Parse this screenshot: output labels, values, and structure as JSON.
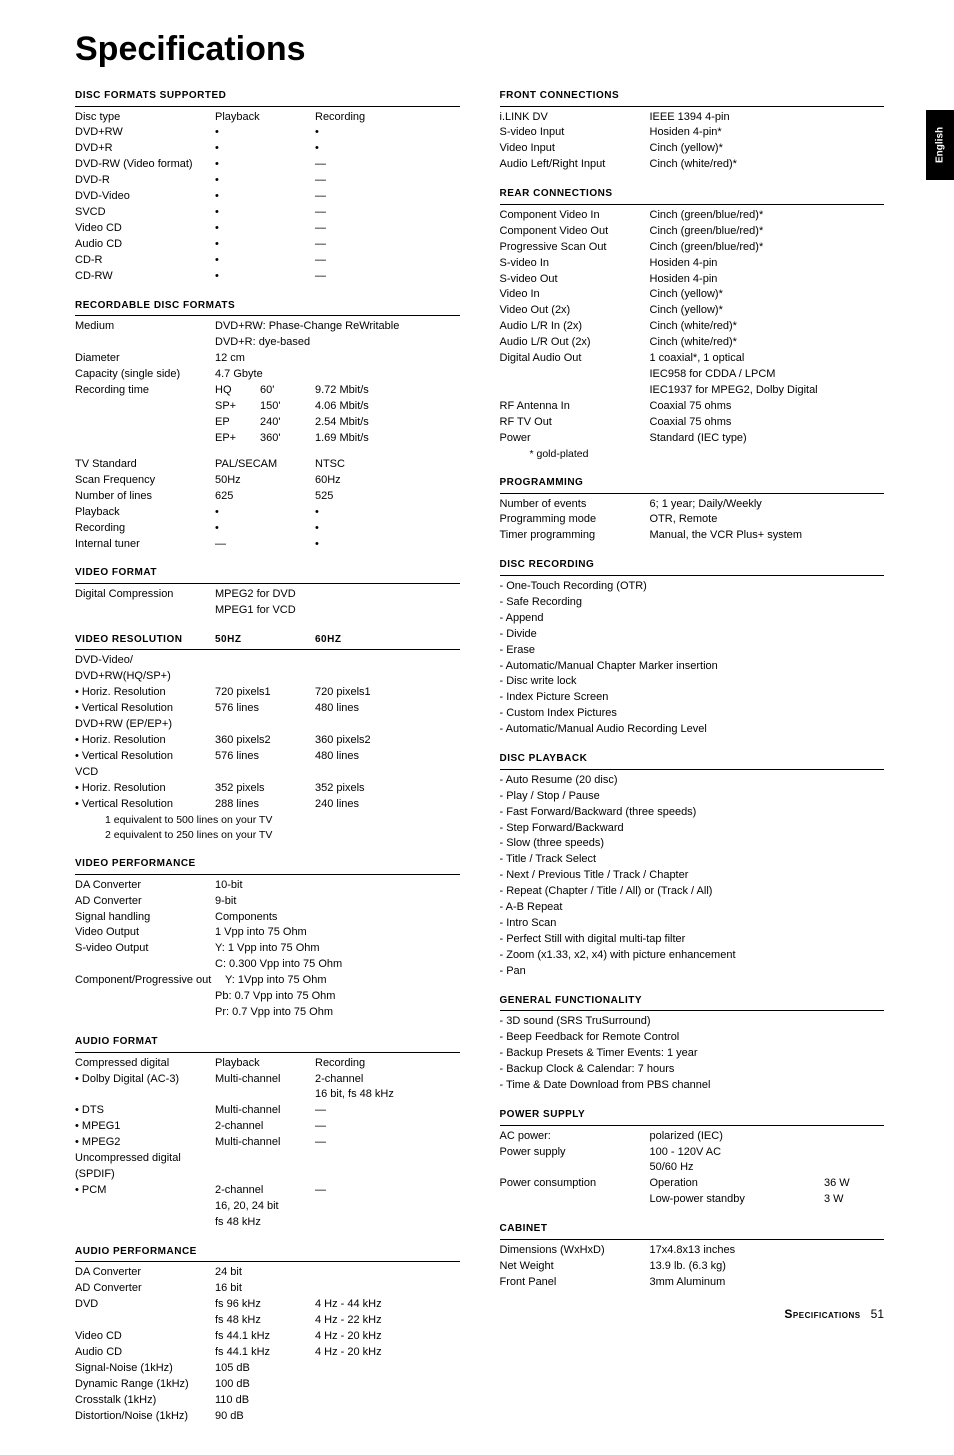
{
  "page": {
    "heading": "Specifications",
    "side_tab": "English",
    "footer_label": "Specifications",
    "footer_page": "51"
  },
  "left": {
    "disc_formats": {
      "title": "DISC FORMATS SUPPORTED",
      "header": {
        "c1": "Disc type",
        "c2": "Playback",
        "c3": "Recording"
      },
      "rows": [
        {
          "c1": "DVD+RW",
          "c2": "•",
          "c3": "•"
        },
        {
          "c1": "DVD+R",
          "c2": "•",
          "c3": "•"
        },
        {
          "c1": "DVD-RW (Video format)",
          "c2": "•",
          "c3": "—"
        },
        {
          "c1": "DVD-R",
          "c2": "•",
          "c3": "—"
        },
        {
          "c1": "DVD-Video",
          "c2": "•",
          "c3": "—"
        },
        {
          "c1": "SVCD",
          "c2": "•",
          "c3": "—"
        },
        {
          "c1": "Video CD",
          "c2": "•",
          "c3": "—"
        },
        {
          "c1": "Audio CD",
          "c2": "•",
          "c3": "—"
        },
        {
          "c1": "CD-R",
          "c2": "•",
          "c3": "—"
        },
        {
          "c1": "CD-RW",
          "c2": "•",
          "c3": "—"
        }
      ]
    },
    "rec_disc": {
      "title": "RECORDABLE DISC FORMATS",
      "rows": [
        {
          "c1": "Medium",
          "c2": "DVD+RW: Phase-Change ReWritable"
        },
        {
          "c1": "",
          "c2": "DVD+R: dye-based"
        },
        {
          "c1": "Diameter",
          "c2": "12 cm"
        },
        {
          "c1": "Capacity (single side)",
          "c2": "4.7 Gbyte"
        },
        {
          "c1": "Recording time",
          "c2": "HQ",
          "c2b": "60'",
          "c3": "9.72 Mbit/s"
        },
        {
          "c1": "",
          "c2": "SP+",
          "c2b": "150'",
          "c3": "4.06 Mbit/s"
        },
        {
          "c1": "",
          "c2": "EP",
          "c2b": "240'",
          "c3": "2.54 Mbit/s"
        },
        {
          "c1": "",
          "c2": "EP+",
          "c2b": "360'",
          "c3": "1.69 Mbit/s"
        }
      ],
      "rows2": [
        {
          "c1": "TV Standard",
          "c2": "PAL/SECAM",
          "c3": "NTSC"
        },
        {
          "c1": "Scan Frequency",
          "c2": "50Hz",
          "c3": "60Hz"
        },
        {
          "c1": "Number of lines",
          "c2": "625",
          "c3": "525"
        },
        {
          "c1": "Playback",
          "c2": "•",
          "c3": "•"
        },
        {
          "c1": "Recording",
          "c2": "•",
          "c3": "•"
        },
        {
          "c1": "Internal tuner",
          "c2": "—",
          "c3": "•"
        }
      ]
    },
    "vfmt": {
      "title": "VIDEO FORMAT",
      "rows": [
        {
          "c1": "Digital Compression",
          "c2": "MPEG2 for DVD"
        },
        {
          "c1": "",
          "c2": "MPEG1 for VCD"
        }
      ]
    },
    "vres": {
      "title_c1": "VIDEO RESOLUTION",
      "title_c2": "50Hz",
      "title_c3": "60Hz",
      "rows": [
        {
          "c1": "DVD-Video/"
        },
        {
          "c1": "DVD+RW(HQ/SP+)"
        },
        {
          "c1": "• Horiz. Resolution",
          "c2": "720 pixels1",
          "c3": "720 pixels1"
        },
        {
          "c1": "• Vertical Resolution",
          "c2": "576 lines",
          "c3": "480 lines"
        },
        {
          "c1": "DVD+RW (EP/EP+)"
        },
        {
          "c1": "• Horiz. Resolution",
          "c2": "360 pixels2",
          "c3": "360 pixels2"
        },
        {
          "c1": "• Vertical Resolution",
          "c2": "576 lines",
          "c3": "480 lines"
        },
        {
          "c1": "VCD"
        },
        {
          "c1": "• Horiz. Resolution",
          "c2": "352 pixels",
          "c3": "352 pixels"
        },
        {
          "c1": "• Vertical Resolution",
          "c2": "288 lines",
          "c3": "240 lines"
        }
      ],
      "note1": "1 equivalent to 500 lines on your TV",
      "note2": "2 equivalent to 250 lines on your TV"
    },
    "vperf": {
      "title": "VIDEO PERFORMANCE",
      "rows": [
        {
          "c1": "DA Converter",
          "c2": "10-bit"
        },
        {
          "c1": "AD Converter",
          "c2": "9-bit"
        },
        {
          "c1": "Signal handling",
          "c2": "Components"
        },
        {
          "c1": "Video Output",
          "c2": "1 Vpp into 75 Ohm"
        },
        {
          "c1": "S-video Output",
          "c2": "Y: 1 Vpp into 75 Ohm"
        },
        {
          "c1": "",
          "c2": "C: 0.300 Vpp into 75 Ohm"
        },
        {
          "c1": "Component/Progressive out",
          "c2": "Y: 1Vpp into 75 Ohm",
          "wide": true
        },
        {
          "c1": "",
          "c2": "Pb: 0.7 Vpp into 75 Ohm"
        },
        {
          "c1": "",
          "c2": "Pr: 0.7 Vpp into 75 Ohm"
        }
      ]
    },
    "afmt": {
      "title": "AUDIO FORMAT",
      "rows": [
        {
          "c1": "Compressed digital",
          "c2": "Playback",
          "c3": "Recording"
        },
        {
          "c1": "• Dolby Digital (AC-3)",
          "c2": "Multi-channel",
          "c3": "2-channel"
        },
        {
          "c1": "",
          "c2": "",
          "c3": "16 bit, fs 48 kHz"
        },
        {
          "c1": "• DTS",
          "c2": "Multi-channel",
          "c3": "—"
        },
        {
          "c1": "• MPEG1",
          "c2": "2-channel",
          "c3": "—"
        },
        {
          "c1": "• MPEG2",
          "c2": "Multi-channel",
          "c3": "—"
        },
        {
          "c1": "Uncompressed digital (SPDIF)"
        },
        {
          "c1": "• PCM",
          "c2": "2-channel",
          "c3": "—"
        },
        {
          "c1": "",
          "c2": "16, 20, 24 bit"
        },
        {
          "c1": "",
          "c2": "fs 48 kHz"
        }
      ]
    },
    "aperf": {
      "title": "AUDIO PERFORMANCE",
      "rows": [
        {
          "c1": "DA Converter",
          "c2": "24 bit"
        },
        {
          "c1": "AD Converter",
          "c2": "16 bit"
        },
        {
          "c1": "DVD",
          "c2": "fs 96 kHz",
          "c3": "4 Hz - 44 kHz"
        },
        {
          "c1": "",
          "c2": "fs 48 kHz",
          "c3": "4 Hz - 22 kHz"
        },
        {
          "c1": "Video CD",
          "c2": "fs 44.1 kHz",
          "c3": "4 Hz - 20 kHz"
        },
        {
          "c1": "Audio CD",
          "c2": "fs 44.1 kHz",
          "c3": "4 Hz - 20 kHz"
        },
        {
          "c1": "Signal-Noise (1kHz)",
          "c2": "105 dB"
        },
        {
          "c1": "Dynamic Range (1kHz)",
          "c2": "100 dB"
        },
        {
          "c1": "Crosstalk (1kHz)",
          "c2": "110 dB"
        },
        {
          "c1": "Distortion/Noise (1kHz)",
          "c2": "90 dB"
        }
      ]
    }
  },
  "right": {
    "front": {
      "title": "FRONT CONNECTIONS",
      "rows": [
        {
          "c1": "i.LINK DV",
          "c2": "IEEE 1394 4-pin"
        },
        {
          "c1": "S-video Input",
          "c2": "Hosiden 4-pin*"
        },
        {
          "c1": "Video Input",
          "c2": "Cinch (yellow)*"
        },
        {
          "c1": "Audio Left/Right Input",
          "c2": "Cinch (white/red)*"
        }
      ]
    },
    "rear": {
      "title": "REAR CONNECTIONS",
      "rows": [
        {
          "c1": "Component Video In",
          "c2": "Cinch (green/blue/red)*"
        },
        {
          "c1": "Component Video Out",
          "c2": "Cinch (green/blue/red)*"
        },
        {
          "c1": "Progressive Scan Out",
          "c2": "Cinch (green/blue/red)*"
        },
        {
          "c1": "S-video In",
          "c2": "Hosiden 4-pin"
        },
        {
          "c1": "S-video Out",
          "c2": "Hosiden 4-pin"
        },
        {
          "c1": "Video In",
          "c2": "Cinch (yellow)*"
        },
        {
          "c1": "Video Out (2x)",
          "c2": "Cinch (yellow)*"
        },
        {
          "c1": "Audio L/R In (2x)",
          "c2": "Cinch (white/red)*"
        },
        {
          "c1": "Audio L/R Out (2x)",
          "c2": "Cinch (white/red)*"
        },
        {
          "c1": "Digital Audio Out",
          "c2": "1 coaxial*, 1 optical"
        },
        {
          "c1": "",
          "c2": "IEC958 for CDDA / LPCM"
        },
        {
          "c1": "",
          "c2": "IEC1937 for MPEG2, Dolby Digital"
        },
        {
          "c1": "RF Antenna In",
          "c2": "Coaxial 75 ohms"
        },
        {
          "c1": "RF TV Out",
          "c2": "Coaxial 75 ohms"
        },
        {
          "c1": "Power",
          "c2": "Standard (IEC type)"
        }
      ],
      "note": "* gold-plated"
    },
    "prog": {
      "title": "PROGRAMMING",
      "rows": [
        {
          "c1": "Number of events",
          "c2": "6; 1 year; Daily/Weekly"
        },
        {
          "c1": "Programming mode",
          "c2": "OTR, Remote"
        },
        {
          "c1": "Timer programming",
          "c2": "Manual, the VCR Plus+ system"
        }
      ]
    },
    "drec": {
      "title": "DISC RECORDING",
      "items": [
        "- One-Touch Recording (OTR)",
        "- Safe Recording",
        "- Append",
        "- Divide",
        "- Erase",
        "- Automatic/Manual Chapter Marker insertion",
        "- Disc write lock",
        "- Index Picture Screen",
        "- Custom Index Pictures",
        "- Automatic/Manual Audio Recording Level"
      ]
    },
    "dplay": {
      "title": "DISC PLAYBACK",
      "items": [
        "- Auto Resume (20 disc)",
        "- Play / Stop / Pause",
        "- Fast Forward/Backward (three speeds)",
        "- Step Forward/Backward",
        "- Slow (three speeds)",
        "- Title / Track Select",
        "- Next / Previous Title / Track / Chapter",
        "- Repeat (Chapter / Title / All) or (Track / All)",
        "- A-B Repeat",
        "- Intro Scan",
        "- Perfect Still with digital multi-tap filter",
        "- Zoom (x1.33, x2, x4) with picture enhancement",
        "- Pan"
      ]
    },
    "gen": {
      "title": "GENERAL FUNCTIONALITY",
      "items": [
        "- 3D sound (SRS TruSurround)",
        "- Beep Feedback for Remote Control",
        "- Backup Presets & Timer Events: 1 year",
        "- Backup Clock & Calendar: 7 hours",
        "- Time & Date Download from PBS channel"
      ]
    },
    "power": {
      "title": "POWER SUPPLY",
      "rows": [
        {
          "c1": "AC power:",
          "c2": "polarized (IEC)"
        },
        {
          "c1": "Power supply",
          "c2": "100 - 120V AC"
        },
        {
          "c1": "",
          "c2": "50/60 Hz"
        },
        {
          "c1": "Power consumption",
          "c2": "Operation",
          "c3": "36 W"
        },
        {
          "c1": "",
          "c2": "Low-power standby",
          "c3": "3 W"
        }
      ]
    },
    "cab": {
      "title": "CABINET",
      "rows": [
        {
          "c1": "Dimensions (WxHxD)",
          "c2": "17x4.8x13 inches"
        },
        {
          "c1": "Net Weight",
          "c2": "13.9 lb. (6.3 kg)"
        },
        {
          "c1": "Front Panel",
          "c2": "3mm Aluminum"
        }
      ]
    }
  }
}
